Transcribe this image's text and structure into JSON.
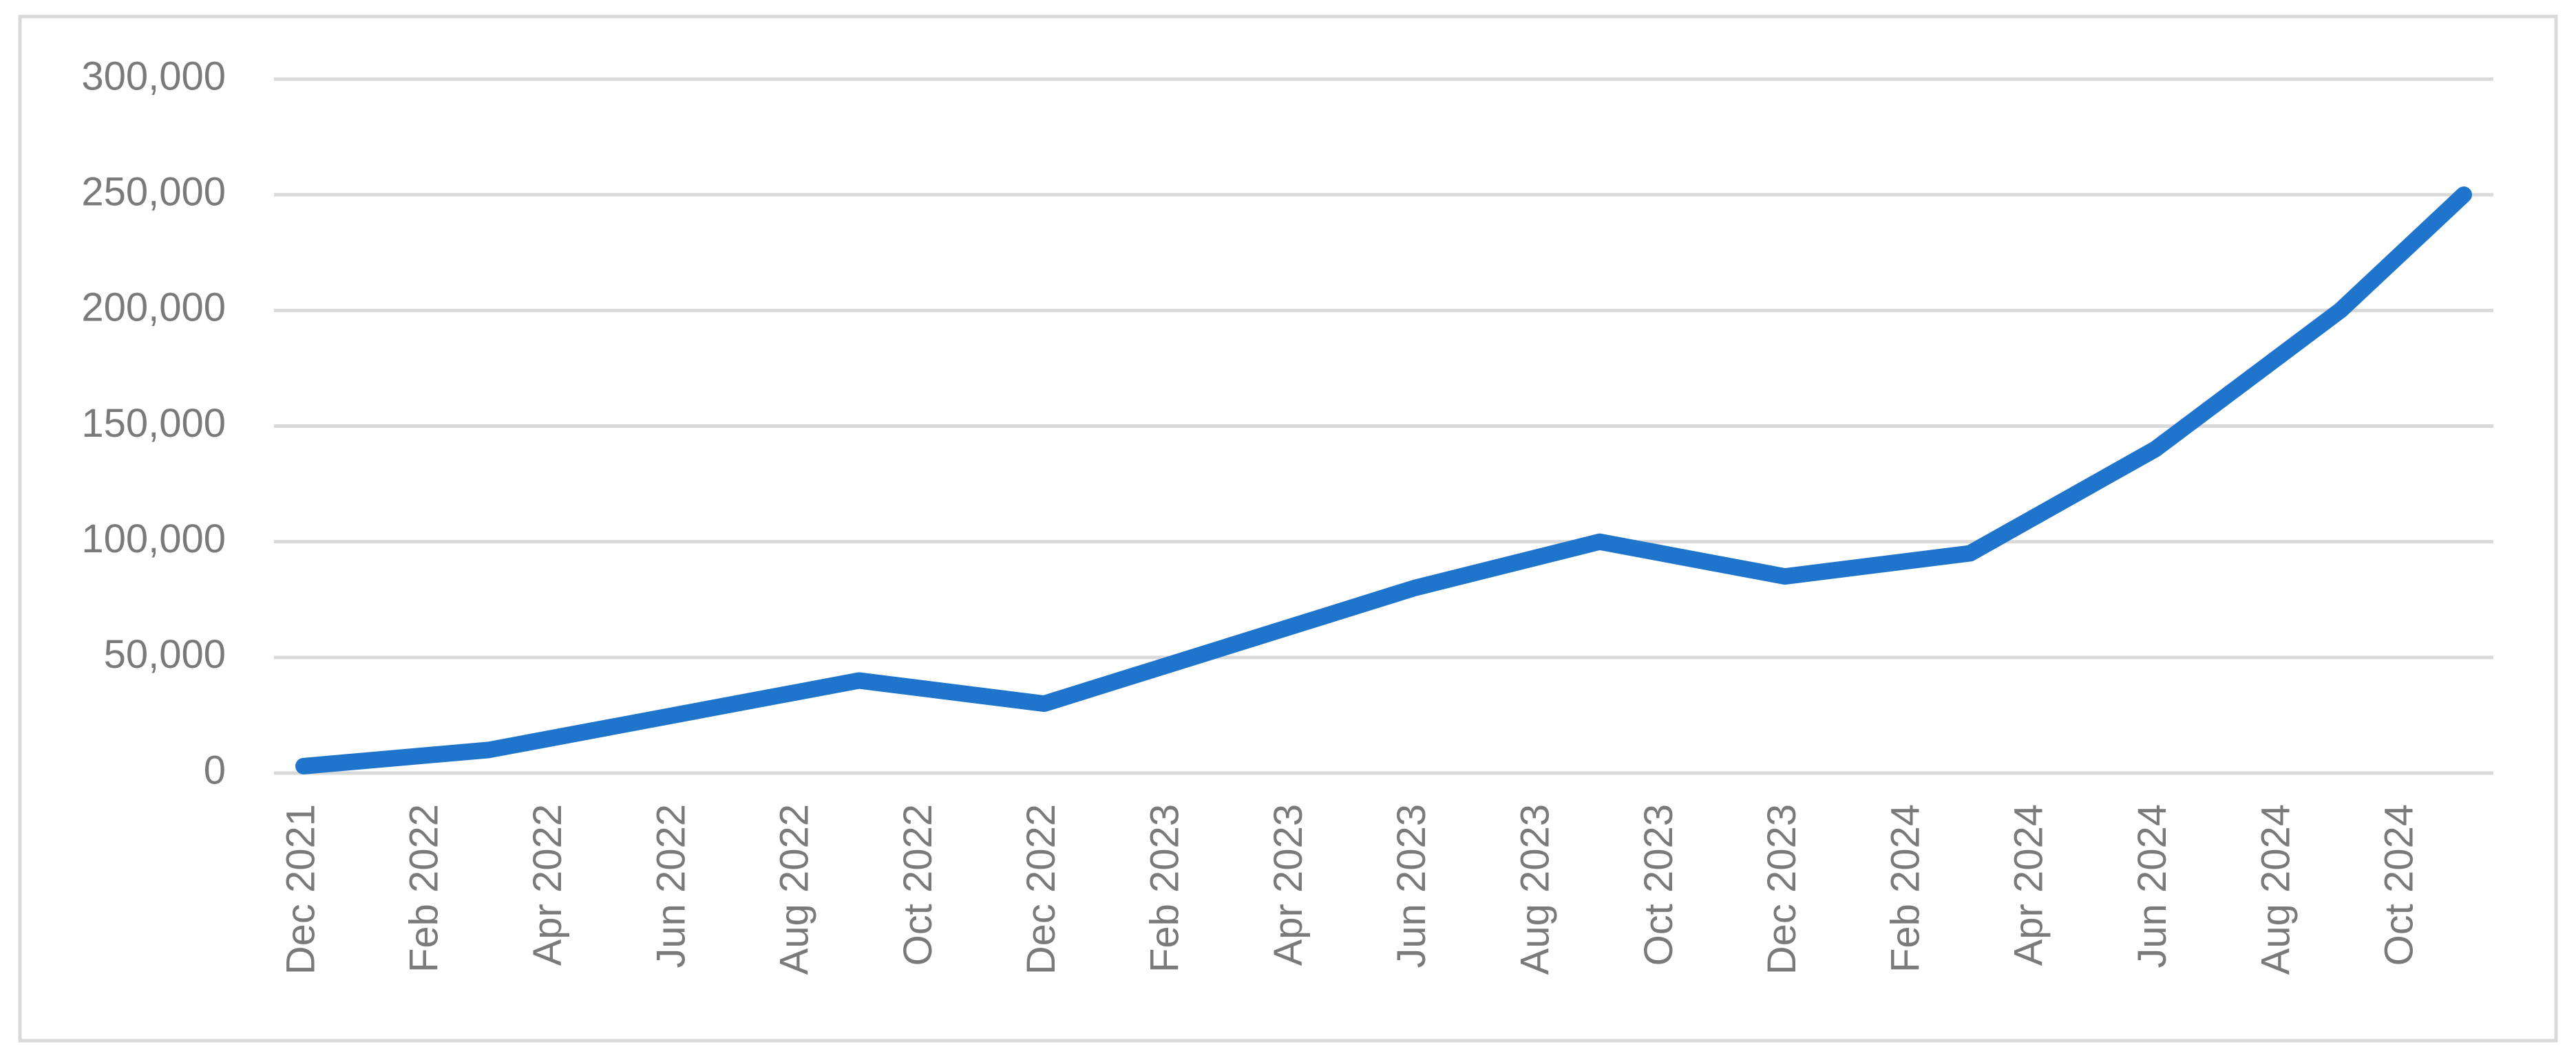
{
  "chart_data": {
    "type": "line",
    "x": [
      "Dec 2021",
      "Mar 2022",
      "Sep 2022",
      "Dec 2022",
      "Jun 2023",
      "Sep 2023",
      "Dec 2023",
      "Mar 2024",
      "Jun 2024",
      "Sep 2024",
      "Nov 2024"
    ],
    "values": [
      3000,
      10000,
      40000,
      30000,
      80000,
      100000,
      85000,
      95000,
      140000,
      200000,
      250000
    ],
    "color": "#1f74cc",
    "xlim": [
      "Dec 2021",
      "Nov 2024"
    ],
    "xticks": [
      "Dec 2021",
      "Feb 2022",
      "Apr 2022",
      "Jun 2022",
      "Aug 2022",
      "Oct 2022",
      "Dec 2022",
      "Feb 2023",
      "Apr 2023",
      "Jun 2023",
      "Aug 2023",
      "Oct 2023",
      "Dec 2023",
      "Feb 2024",
      "Apr 2024",
      "Jun 2024",
      "Aug 2024",
      "Oct 2024"
    ],
    "ylim": [
      0,
      300000
    ],
    "yticks": [
      0,
      {
        "value": 50000,
        "label": "50,000"
      },
      {
        "value": 100000,
        "label": "100,000"
      },
      {
        "value": 150000,
        "label": "150,000"
      },
      {
        "value": 200000,
        "label": "200,000"
      },
      {
        "value": 250000,
        "label": "250,000"
      },
      {
        "value": 300000,
        "label": "300,000"
      }
    ],
    "grid": true
  }
}
